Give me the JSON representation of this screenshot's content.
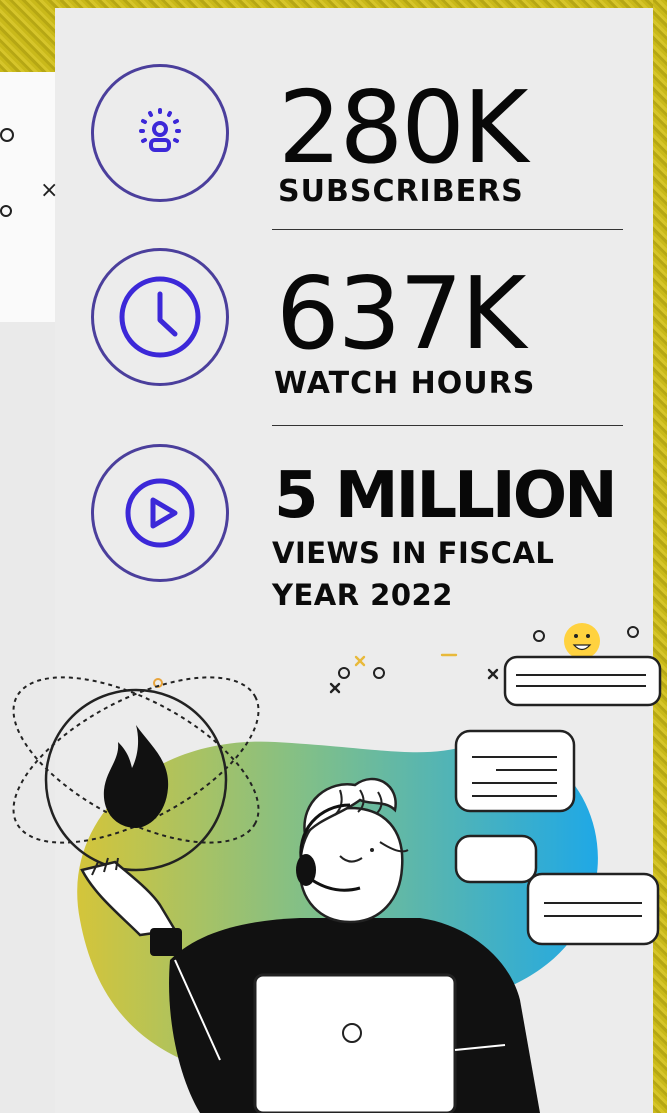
{
  "stats": [
    {
      "value": "280K",
      "label": "SUBSCRIBERS",
      "icon": "podcast-icon"
    },
    {
      "value": "637K",
      "label": "WATCH HOURS",
      "icon": "clock-icon"
    },
    {
      "value": "5 MILLION",
      "label_line1": "VIEWS IN FISCAL",
      "label_line2": "YEAR 2022",
      "icon": "play-icon"
    }
  ],
  "colors": {
    "accent": "#4b3f9c",
    "icon_fill": "#3c28d8",
    "text": "#080808",
    "background": "#ececec",
    "gradient_start": "#c8c43a",
    "gradient_end": "#2ea9dd"
  }
}
